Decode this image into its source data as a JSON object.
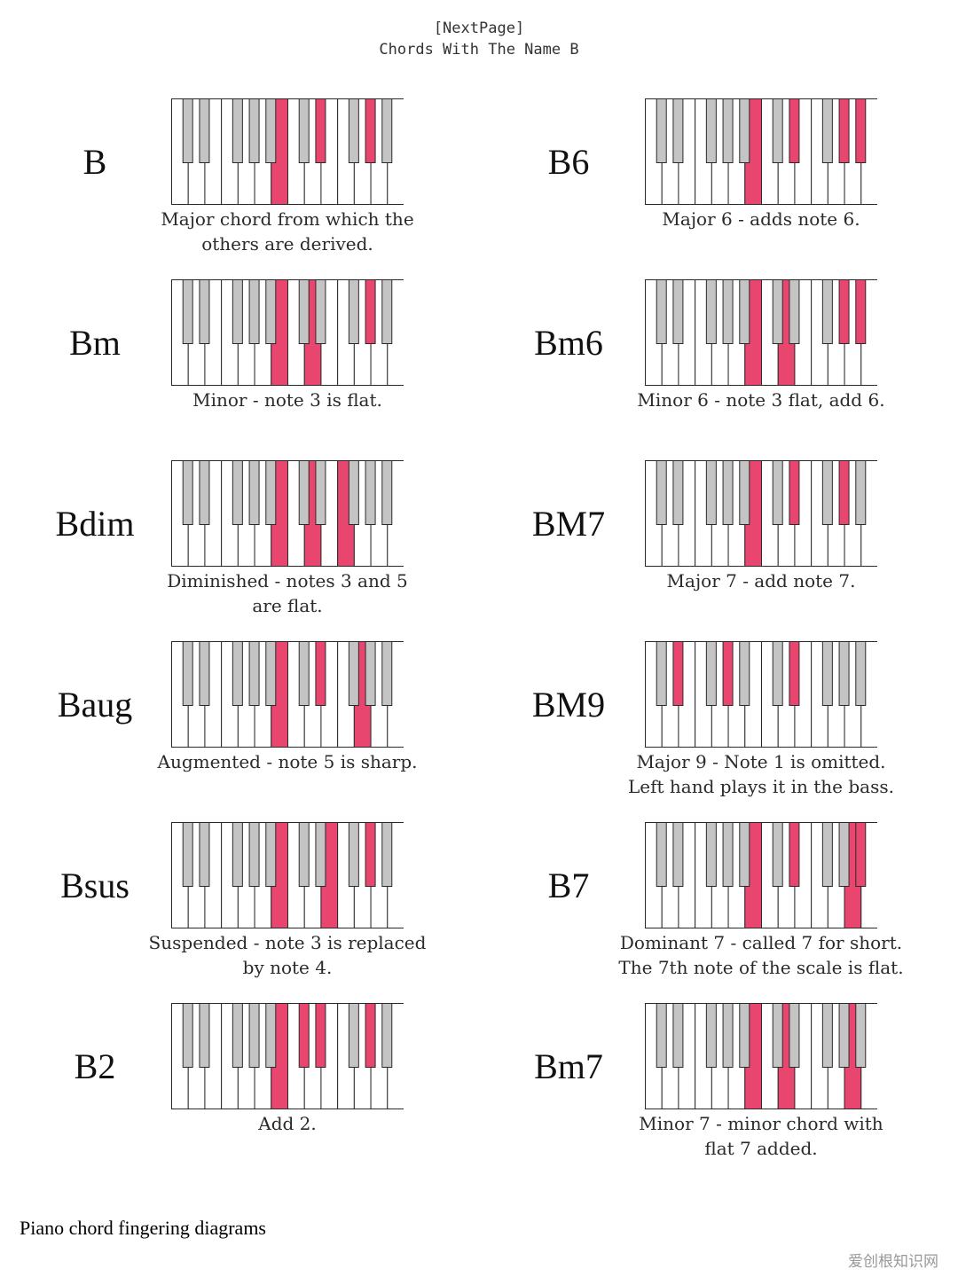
{
  "header": {
    "line1": "[NextPage]",
    "line2": "Chords With The Name B"
  },
  "colors": {
    "white_key": "#ffffff",
    "black_key": "#c4c4c4",
    "highlight": "#e8456f",
    "outline": "#2a2a2a"
  },
  "chords": [
    {
      "name": "B",
      "caption": [
        "Major chord from which the",
        "others are derived."
      ],
      "highlight_white": [
        6
      ],
      "highlight_black": [
        6,
        8
      ]
    },
    {
      "name": "B6",
      "caption": [
        "Major 6 - adds note 6."
      ],
      "highlight_white": [
        6
      ],
      "highlight_black": [
        6,
        8,
        9
      ]
    },
    {
      "name": "Bm",
      "caption": [
        "Minor - note 3 is flat."
      ],
      "highlight_white": [
        6,
        8
      ],
      "highlight_black": [
        8
      ]
    },
    {
      "name": "Bm6",
      "caption": [
        "Minor 6 - note 3 flat, add 6."
      ],
      "highlight_white": [
        6,
        8
      ],
      "highlight_black": [
        8,
        9
      ]
    },
    {
      "name": "Bdim",
      "caption": [
        "Diminished - notes 3 and 5",
        "are flat."
      ],
      "highlight_white": [
        6,
        8,
        10
      ],
      "highlight_black": []
    },
    {
      "name": "BM7",
      "caption": [
        "Major 7 - add note 7."
      ],
      "highlight_white": [
        6
      ],
      "highlight_black": [
        6,
        8,
        10
      ]
    },
    {
      "name": "Baug",
      "caption": [
        "Augmented - note 5 is sharp."
      ],
      "highlight_white": [
        6,
        11
      ],
      "highlight_black": [
        6
      ]
    },
    {
      "name": "BM9",
      "caption": [
        "Major 9 - Note 1 is omitted.",
        "Left hand plays it in the bass."
      ],
      "highlight_white": [],
      "highlight_black": [
        1,
        3,
        6
      ]
    },
    {
      "name": "Bsus",
      "caption": [
        "Suspended - note 3 is replaced",
        "by note 4."
      ],
      "highlight_white": [
        6,
        9
      ],
      "highlight_black": [
        8
      ]
    },
    {
      "name": "B7",
      "caption": [
        "Dominant 7 - called 7 for short.",
        "The 7th note of the scale is flat."
      ],
      "highlight_white": [
        6,
        12
      ],
      "highlight_black": [
        6,
        9
      ]
    },
    {
      "name": "B2",
      "caption": [
        "Add 2."
      ],
      "highlight_white": [
        6
      ],
      "highlight_black": [
        5,
        6,
        8
      ]
    },
    {
      "name": "Bm7",
      "caption": [
        "Minor 7 - minor chord with",
        "flat 7 added."
      ],
      "highlight_white": [
        6,
        8,
        12
      ],
      "highlight_black": []
    }
  ],
  "footer": {
    "caption": "Piano chord fingering diagrams",
    "watermark": "爱创根知识网"
  }
}
